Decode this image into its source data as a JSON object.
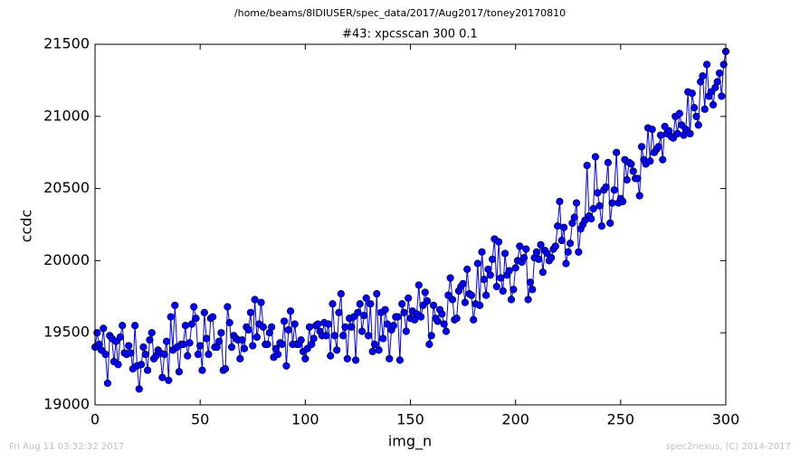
{
  "chart_data": {
    "type": "line",
    "title": "/home/beams/8IDIUSER/spec_data/2017/Aug2017/toney20170810",
    "subtitle": "#43: xpcsscan 300 0.1",
    "x_label": "img_n",
    "y_label": "ccdc",
    "x": [
      0,
      1,
      2,
      3,
      4,
      5,
      6,
      7,
      8,
      9,
      10,
      11,
      12,
      13,
      14,
      15,
      16,
      17,
      18,
      19,
      20,
      21,
      22,
      23,
      24,
      25,
      26,
      27,
      28,
      29,
      30,
      31,
      32,
      33,
      34,
      35,
      36,
      37,
      38,
      39,
      40,
      41,
      42,
      43,
      44,
      45,
      46,
      47,
      48,
      49,
      50,
      51,
      52,
      53,
      54,
      55,
      56,
      57,
      58,
      59,
      60,
      61,
      62,
      63,
      64,
      65,
      66,
      67,
      68,
      69,
      70,
      71,
      72,
      73,
      74,
      75,
      76,
      77,
      78,
      79,
      80,
      81,
      82,
      83,
      84,
      85,
      86,
      87,
      88,
      89,
      90,
      91,
      92,
      93,
      94,
      95,
      96,
      97,
      98,
      99,
      100,
      101,
      102,
      103,
      104,
      105,
      106,
      107,
      108,
      109,
      110,
      111,
      112,
      113,
      114,
      115,
      116,
      117,
      118,
      119,
      120,
      121,
      122,
      123,
      124,
      125,
      126,
      127,
      128,
      129,
      130,
      131,
      132,
      133,
      134,
      135,
      136,
      137,
      138,
      139,
      140,
      141,
      142,
      143,
      144,
      145,
      146,
      147,
      148,
      149,
      150,
      151,
      152,
      153,
      154,
      155,
      156,
      157,
      158,
      159,
      160,
      161,
      162,
      163,
      164,
      165,
      166,
      167,
      168,
      169,
      170,
      171,
      172,
      173,
      174,
      175,
      176,
      177,
      178,
      179,
      180,
      181,
      182,
      183,
      184,
      185,
      186,
      187,
      188,
      189,
      190,
      191,
      192,
      193,
      194,
      195,
      196,
      197,
      198,
      199,
      200,
      201,
      202,
      203,
      204,
      205,
      206,
      207,
      208,
      209,
      210,
      211,
      212,
      213,
      214,
      215,
      216,
      217,
      218,
      219,
      220,
      221,
      222,
      223,
      224,
      225,
      226,
      227,
      228,
      229,
      230,
      231,
      232,
      233,
      234,
      235,
      236,
      237,
      238,
      239,
      240,
      241,
      242,
      243,
      244,
      245,
      246,
      247,
      248,
      249,
      250,
      251,
      252,
      253,
      254,
      255,
      256,
      257,
      258,
      259,
      260,
      261,
      262,
      263,
      264,
      265,
      266,
      267,
      268,
      269,
      270,
      271,
      272,
      273,
      274,
      275,
      276,
      277,
      278,
      279,
      280,
      281,
      282,
      283,
      284,
      285,
      286,
      287,
      288,
      289,
      290,
      291,
      292,
      293,
      294,
      295,
      296,
      297,
      298,
      299,
      300
    ],
    "series": [
      {
        "color": "#0000ff",
        "values": [
          19400,
          19500,
          19420,
          19380,
          19530,
          19350,
          19150,
          19480,
          19460,
          19300,
          19440,
          19280,
          19470,
          19550,
          19360,
          19350,
          19410,
          19360,
          19250,
          19550,
          19270,
          19110,
          19280,
          19400,
          19350,
          19240,
          19450,
          19500,
          19320,
          19340,
          19380,
          19360,
          19190,
          19350,
          19440,
          19170,
          19610,
          19380,
          19690,
          19400,
          19230,
          19420,
          19420,
          19550,
          19340,
          19430,
          19560,
          19680,
          19600,
          19350,
          19410,
          19240,
          19640,
          19460,
          19350,
          19600,
          19610,
          19400,
          19400,
          19440,
          19500,
          19240,
          19250,
          19680,
          19570,
          19400,
          19480,
          19460,
          19450,
          19320,
          19450,
          19390,
          19540,
          19520,
          19640,
          19410,
          19730,
          19470,
          19560,
          19710,
          19540,
          19420,
          19420,
          19500,
          19540,
          19330,
          19390,
          19350,
          19430,
          19420,
          19580,
          19270,
          19520,
          19650,
          19420,
          19560,
          19420,
          19420,
          19450,
          19370,
          19320,
          19390,
          19540,
          19420,
          19460,
          19550,
          19560,
          19510,
          19480,
          19570,
          19480,
          19560,
          19340,
          19700,
          19480,
          19380,
          19640,
          19770,
          19480,
          19540,
          19320,
          19600,
          19540,
          19610,
          19310,
          19640,
          19700,
          19510,
          19620,
          19740,
          19480,
          19700,
          19370,
          19420,
          19770,
          19380,
          19640,
          19460,
          19660,
          19560,
          19320,
          19520,
          19550,
          19610,
          19610,
          19310,
          19700,
          19640,
          19510,
          19740,
          19600,
          19650,
          19590,
          19630,
          19830,
          19610,
          19690,
          19780,
          19720,
          19420,
          19480,
          19690,
          19600,
          19580,
          19660,
          19630,
          19560,
          19510,
          19760,
          19880,
          19730,
          19590,
          19600,
          19790,
          19820,
          19840,
          19710,
          19940,
          19770,
          19760,
          19590,
          19700,
          19980,
          19690,
          20060,
          19870,
          19760,
          19940,
          19900,
          20010,
          20150,
          19820,
          20130,
          19880,
          19790,
          20050,
          19900,
          19930,
          19730,
          19800,
          19950,
          20000,
          20100,
          19990,
          20020,
          20080,
          19730,
          19850,
          19800,
          20020,
          20060,
          20010,
          20110,
          19920,
          20070,
          20050,
          20000,
          20020,
          20080,
          20100,
          20240,
          20410,
          20140,
          20230,
          19980,
          20060,
          20120,
          20260,
          20300,
          20400,
          20060,
          20220,
          20250,
          20280,
          20660,
          20310,
          20290,
          20360,
          20720,
          20470,
          20380,
          20240,
          20490,
          20510,
          20680,
          20260,
          20400,
          20490,
          20750,
          20400,
          20430,
          20410,
          20700,
          20560,
          20680,
          20670,
          20620,
          20570,
          20570,
          20450,
          20790,
          20700,
          20670,
          20920,
          20690,
          20910,
          20750,
          20770,
          20790,
          20870,
          20700,
          20930,
          20880,
          20900,
          20860,
          20850,
          21000,
          20880,
          21020,
          20940,
          20870,
          20910,
          21170,
          20880,
          21160,
          21060,
          21000,
          20940,
          21240,
          21280,
          21050,
          21360,
          21140,
          21170,
          21080,
          21200,
          21240,
          21300,
          21140,
          21360,
          21450
        ]
      }
    ],
    "xlim": [
      0,
      300
    ],
    "xticks": [
      0,
      50,
      100,
      150,
      200,
      250,
      300
    ],
    "ylim": [
      19000,
      21500
    ],
    "yticks": [
      19000,
      19500,
      20000,
      20500,
      21000,
      21500
    ]
  },
  "footer": {
    "left": "Fri Aug 11 03:32:32 2017",
    "right": "spec2nexus, (C) 2014-2017"
  }
}
